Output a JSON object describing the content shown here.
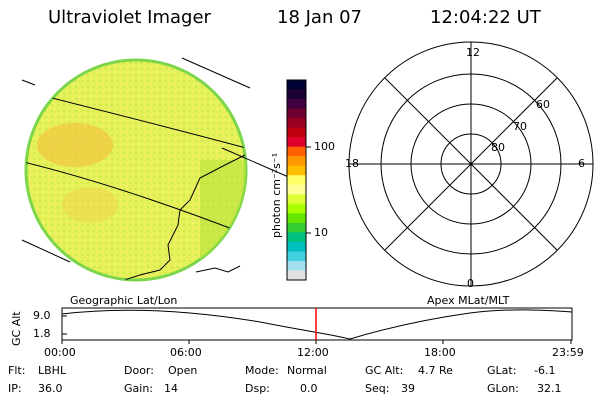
{
  "header": {
    "instrument": "Ultraviolet Imager",
    "date": "18 Jan 07",
    "time": "12:04:22 UT"
  },
  "colorbar": {
    "unit_label": "photon cm⁻²s⁻¹",
    "ticks": [
      "100",
      "10"
    ],
    "colors": [
      "#000033",
      "#1a0033",
      "#400040",
      "#700030",
      "#990020",
      "#c00010",
      "#e00030",
      "#ff6000",
      "#ff9900",
      "#ffbf00",
      "#ffff66",
      "#ffff99",
      "#ddff33",
      "#aaff00",
      "#66e600",
      "#33cc33",
      "#00c080",
      "#00c0c0",
      "#40d0e0",
      "#a0e0f0",
      "#e0e0e0"
    ]
  },
  "left_panel": {
    "label": "Geographic Lat/Lon"
  },
  "right_panel": {
    "label": "Apex MLat/MLT",
    "mlt_labels": {
      "top": "12",
      "left": "18",
      "right": "6",
      "bottom": "0"
    },
    "lat_labels": [
      "60",
      "70",
      "80"
    ]
  },
  "altitude_plot": {
    "ylabel": "GC Alt",
    "yticks": [
      "9.0",
      "1.8"
    ],
    "xticks": [
      "00:00",
      "06:00",
      "12:00",
      "18:00",
      "23:59"
    ],
    "current_time_marker_color": "#ff0000"
  },
  "info": {
    "flt_label": "Flt:",
    "flt_value": "LBHL",
    "ip_label": "IP:",
    "ip_value": "36.0",
    "door_label": "Door:",
    "door_value": "Open",
    "gain_label": "Gain:",
    "gain_value": "14",
    "mode_label": "Mode:",
    "mode_value": "Normal",
    "dsp_label": "Dsp:",
    "dsp_value": "0.0",
    "gcalt_label": "GC Alt:",
    "gcalt_value": "4.7 Re",
    "seq_label": "Seq:",
    "seq_value": "39",
    "glat_label": "GLat:",
    "glat_value": "-6.1",
    "glon_label": "GLon:",
    "glon_value": "32.1"
  }
}
